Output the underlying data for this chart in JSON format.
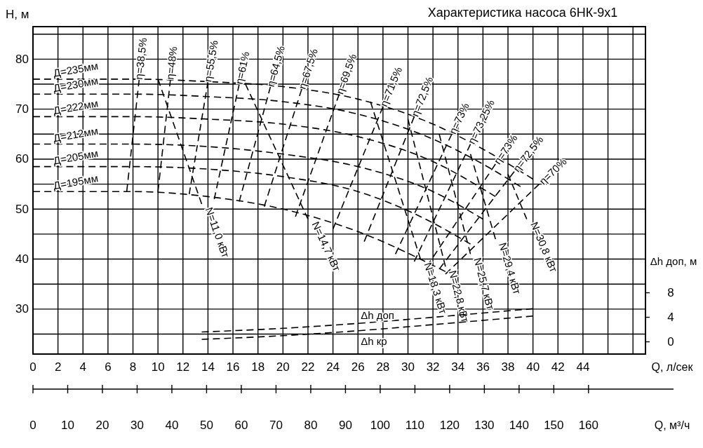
{
  "chart_data": {
    "type": "line",
    "title": "Характеристика насоса 6НК-9х1",
    "xlabel": "Q, л/сек",
    "ylabel": "H, м",
    "y2label": "Δh доп, м",
    "x2label": "Q, м³/ч",
    "xlim": [
      0,
      49
    ],
    "ylim": [
      21,
      86.5
    ],
    "y2lim": [
      -2,
      51.4
    ],
    "x2lim": [
      0,
      176.4
    ],
    "xticks": [
      0,
      2,
      4,
      6,
      8,
      10,
      12,
      14,
      16,
      18,
      20,
      22,
      24,
      26,
      28,
      30,
      32,
      34,
      36,
      38,
      40,
      42,
      44,
      {
        "value": 46,
        "label": null
      },
      {
        "value": 48,
        "label": null
      }
    ],
    "yticks": [
      {
        "value": 25,
        "label": null
      },
      30,
      {
        "value": 35,
        "label": null
      },
      40,
      {
        "value": 45,
        "label": null
      },
      50,
      {
        "value": 55,
        "label": null
      },
      60,
      {
        "value": 65,
        "label": null
      },
      70,
      {
        "value": 75,
        "label": null
      },
      80,
      {
        "value": 85,
        "label": null
      }
    ],
    "y2ticks": [
      0,
      4,
      8
    ],
    "x2ticks": [
      0,
      10,
      20,
      30,
      40,
      50,
      60,
      70,
      80,
      90,
      100,
      110,
      120,
      130,
      140,
      150,
      160
    ],
    "grid": true,
    "line_style": "dashed",
    "marker": "none",
    "series": [
      {
        "name": "Д=235мм",
        "color": "#000000",
        "x": [
          0,
          8,
          14,
          20,
          26,
          32,
          36,
          40
        ],
        "values": [
          76,
          76,
          75.5,
          74.5,
          72,
          67,
          62,
          56
        ]
      },
      {
        "name": "Д=230мм",
        "color": "#000000",
        "x": [
          0,
          8,
          14,
          20,
          26,
          32,
          36,
          39
        ],
        "values": [
          73,
          73,
          72.5,
          71.5,
          69,
          64,
          59,
          54.5
        ]
      },
      {
        "name": "Д=222мм",
        "color": "#000000",
        "x": [
          0,
          8,
          14,
          20,
          26,
          32,
          37
        ],
        "values": [
          68.5,
          68.5,
          68,
          67,
          64.5,
          59.5,
          52.5
        ]
      },
      {
        "name": "Д=212мм",
        "color": "#000000",
        "x": [
          0,
          8,
          14,
          20,
          26,
          32,
          36
        ],
        "values": [
          63,
          63,
          62.5,
          61,
          58.5,
          53.5,
          48
        ]
      },
      {
        "name": "Д=205мм",
        "color": "#000000",
        "x": [
          0,
          8,
          14,
          20,
          26,
          31,
          35
        ],
        "values": [
          58.5,
          58.5,
          58,
          56.5,
          53.5,
          48.5,
          43
        ]
      },
      {
        "name": "Д=195мм",
        "color": "#000000",
        "x": [
          0,
          8,
          14,
          20,
          26,
          33
        ],
        "values": [
          53.5,
          53.5,
          52.5,
          50,
          45.5,
          37.5
        ]
      },
      {
        "name": "η=38,5%",
        "color": "#000000",
        "x": [
          8.5,
          7.5
        ],
        "values": [
          76,
          53.5
        ]
      },
      {
        "name": "η=48%",
        "color": "#000000",
        "x": [
          11,
          10
        ],
        "values": [
          76,
          53.5
        ]
      },
      {
        "name": "η=55,5%",
        "color": "#000000",
        "x": [
          14,
          12.5
        ],
        "values": [
          75.5,
          53
        ]
      },
      {
        "name": "η=61%",
        "color": "#000000",
        "x": [
          16.5,
          14.5
        ],
        "values": [
          75,
          52
        ]
      },
      {
        "name": "η=64,5%",
        "color": "#000000",
        "x": [
          19,
          16.5
        ],
        "values": [
          74.5,
          51.5
        ]
      },
      {
        "name": "η=67,5%",
        "color": "#000000",
        "x": [
          21.5,
          18.5
        ],
        "values": [
          74,
          50.5
        ]
      },
      {
        "name": "η=69,5%",
        "color": "#000000",
        "x": [
          24.5,
          21
        ],
        "values": [
          73,
          48.5
        ]
      },
      {
        "name": "η=71,5%",
        "color": "#000000",
        "x": [
          28,
          24
        ],
        "values": [
          70.5,
          46
        ]
      },
      {
        "name": "η=72,5%",
        "color": "#000000",
        "x": [
          30.5,
          26.5
        ],
        "values": [
          68.5,
          43.5
        ]
      },
      {
        "name": "η=73%",
        "color": "#000000",
        "x": [
          33.5,
          29
        ],
        "values": [
          65,
          41
        ]
      },
      {
        "name": "η=73,25%",
        "color": "#000000",
        "x": [
          35,
          30.5
        ],
        "values": [
          63,
          39.5
        ]
      },
      {
        "name": "η=73%",
        "color": "#000000",
        "x": [
          37,
          31.5
        ],
        "values": [
          59,
          38.5
        ]
      },
      {
        "name": "η=72,5%",
        "color": "#000000",
        "x": [
          38.5,
          32.5
        ],
        "values": [
          57.5,
          38
        ]
      },
      {
        "name": "η=70%",
        "color": "#000000",
        "x": [
          40.5,
          33
        ],
        "values": [
          55,
          37
        ]
      },
      {
        "name": "N=11,0 кВт",
        "color": "#000000",
        "x": [
          13.5,
          10
        ],
        "values": [
          51,
          76
        ]
      },
      {
        "name": "N=14,7 кВт",
        "color": "#000000",
        "x": [
          22,
          17
        ],
        "values": [
          48,
          75
        ]
      },
      {
        "name": "N=18,3 кВт",
        "color": "#000000",
        "x": [
          31,
          27
        ],
        "values": [
          40,
          71.5
        ]
      },
      {
        "name": "N=22,8 кВт",
        "color": "#000000",
        "x": [
          33,
          30
        ],
        "values": [
          38.5,
          68
        ]
      },
      {
        "name": "N=25,7 кВт",
        "color": "#000000",
        "x": [
          35,
          32.5
        ],
        "values": [
          41,
          65
        ]
      },
      {
        "name": "N=29,4 кВт",
        "color": "#000000",
        "x": [
          37,
          35
        ],
        "values": [
          44,
          61
        ]
      },
      {
        "name": "N=30,8 кВт",
        "color": "#000000",
        "x": [
          39.5,
          38
        ],
        "values": [
          48,
          57
        ]
      },
      {
        "name": "Δh доп",
        "axis": "y2",
        "color": "#000000",
        "x": [
          13.5,
          20,
          26,
          32,
          40
        ],
        "values": [
          1.6,
          2.2,
          3.0,
          4.0,
          5.4
        ]
      },
      {
        "name": "Δh кр",
        "axis": "y2",
        "color": "#000000",
        "x": [
          13.5,
          20,
          26,
          32,
          40
        ],
        "values": [
          0.4,
          1.0,
          1.8,
          2.8,
          4.2
        ]
      }
    ]
  }
}
